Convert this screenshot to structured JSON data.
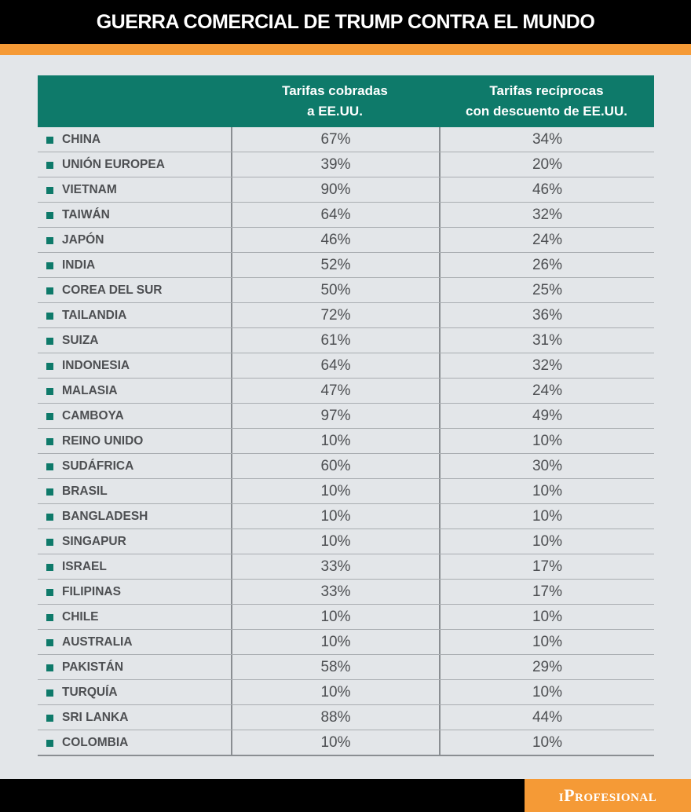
{
  "header": {
    "title": "GUERRA COMERCIAL DE TRUMP CONTRA EL MUNDO"
  },
  "colors": {
    "header_bg": "#000000",
    "accent_orange": "#f59a36",
    "table_header_green": "#0e7a6a",
    "page_bg": "#e3e6e9",
    "text_gray": "#4d4f52"
  },
  "chart_data": {
    "type": "table",
    "title": "GUERRA COMERCIAL DE TRUMP CONTRA EL MUNDO",
    "columns": [
      "",
      "Tarifas cobradas\na EE.UU.",
      "Tarifas recíprocas\ncon descuento de EE.UU."
    ],
    "rows": [
      {
        "country": "CHINA",
        "tariff_charged": "67%",
        "reciprocal": "34%"
      },
      {
        "country": "UNIÓN EUROPEA",
        "tariff_charged": "39%",
        "reciprocal": "20%"
      },
      {
        "country": "VIETNAM",
        "tariff_charged": "90%",
        "reciprocal": "46%"
      },
      {
        "country": "TAIWÁN",
        "tariff_charged": "64%",
        "reciprocal": "32%"
      },
      {
        "country": "JAPÓN",
        "tariff_charged": "46%",
        "reciprocal": "24%"
      },
      {
        "country": "INDIA",
        "tariff_charged": "52%",
        "reciprocal": "26%"
      },
      {
        "country": "COREA DEL SUR",
        "tariff_charged": "50%",
        "reciprocal": "25%"
      },
      {
        "country": "TAILANDIA",
        "tariff_charged": "72%",
        "reciprocal": "36%"
      },
      {
        "country": "SUIZA",
        "tariff_charged": "61%",
        "reciprocal": "31%"
      },
      {
        "country": "INDONESIA",
        "tariff_charged": "64%",
        "reciprocal": "32%"
      },
      {
        "country": "MALASIA",
        "tariff_charged": "47%",
        "reciprocal": "24%"
      },
      {
        "country": "CAMBOYA",
        "tariff_charged": "97%",
        "reciprocal": "49%"
      },
      {
        "country": "REINO UNIDO",
        "tariff_charged": "10%",
        "reciprocal": "10%"
      },
      {
        "country": "SUDÁFRICA",
        "tariff_charged": "60%",
        "reciprocal": "30%"
      },
      {
        "country": "BRASIL",
        "tariff_charged": "10%",
        "reciprocal": "10%"
      },
      {
        "country": "BANGLADESH",
        "tariff_charged": "10%",
        "reciprocal": "10%"
      },
      {
        "country": "SINGAPUR",
        "tariff_charged": "10%",
        "reciprocal": "10%"
      },
      {
        "country": "ISRAEL",
        "tariff_charged": "33%",
        "reciprocal": "17%"
      },
      {
        "country": "FILIPINAS",
        "tariff_charged": "33%",
        "reciprocal": "17%"
      },
      {
        "country": "CHILE",
        "tariff_charged": "10%",
        "reciprocal": "10%"
      },
      {
        "country": "AUSTRALIA",
        "tariff_charged": "10%",
        "reciprocal": "10%"
      },
      {
        "country": "PAKISTÁN",
        "tariff_charged": "58%",
        "reciprocal": "29%"
      },
      {
        "country": "TURQUÍA",
        "tariff_charged": "10%",
        "reciprocal": "10%"
      },
      {
        "country": "SRI LANKA",
        "tariff_charged": "88%",
        "reciprocal": "44%"
      },
      {
        "country": "COLOMBIA",
        "tariff_charged": "10%",
        "reciprocal": "10%"
      }
    ]
  },
  "footer": {
    "logo_text": "iProfesional"
  }
}
